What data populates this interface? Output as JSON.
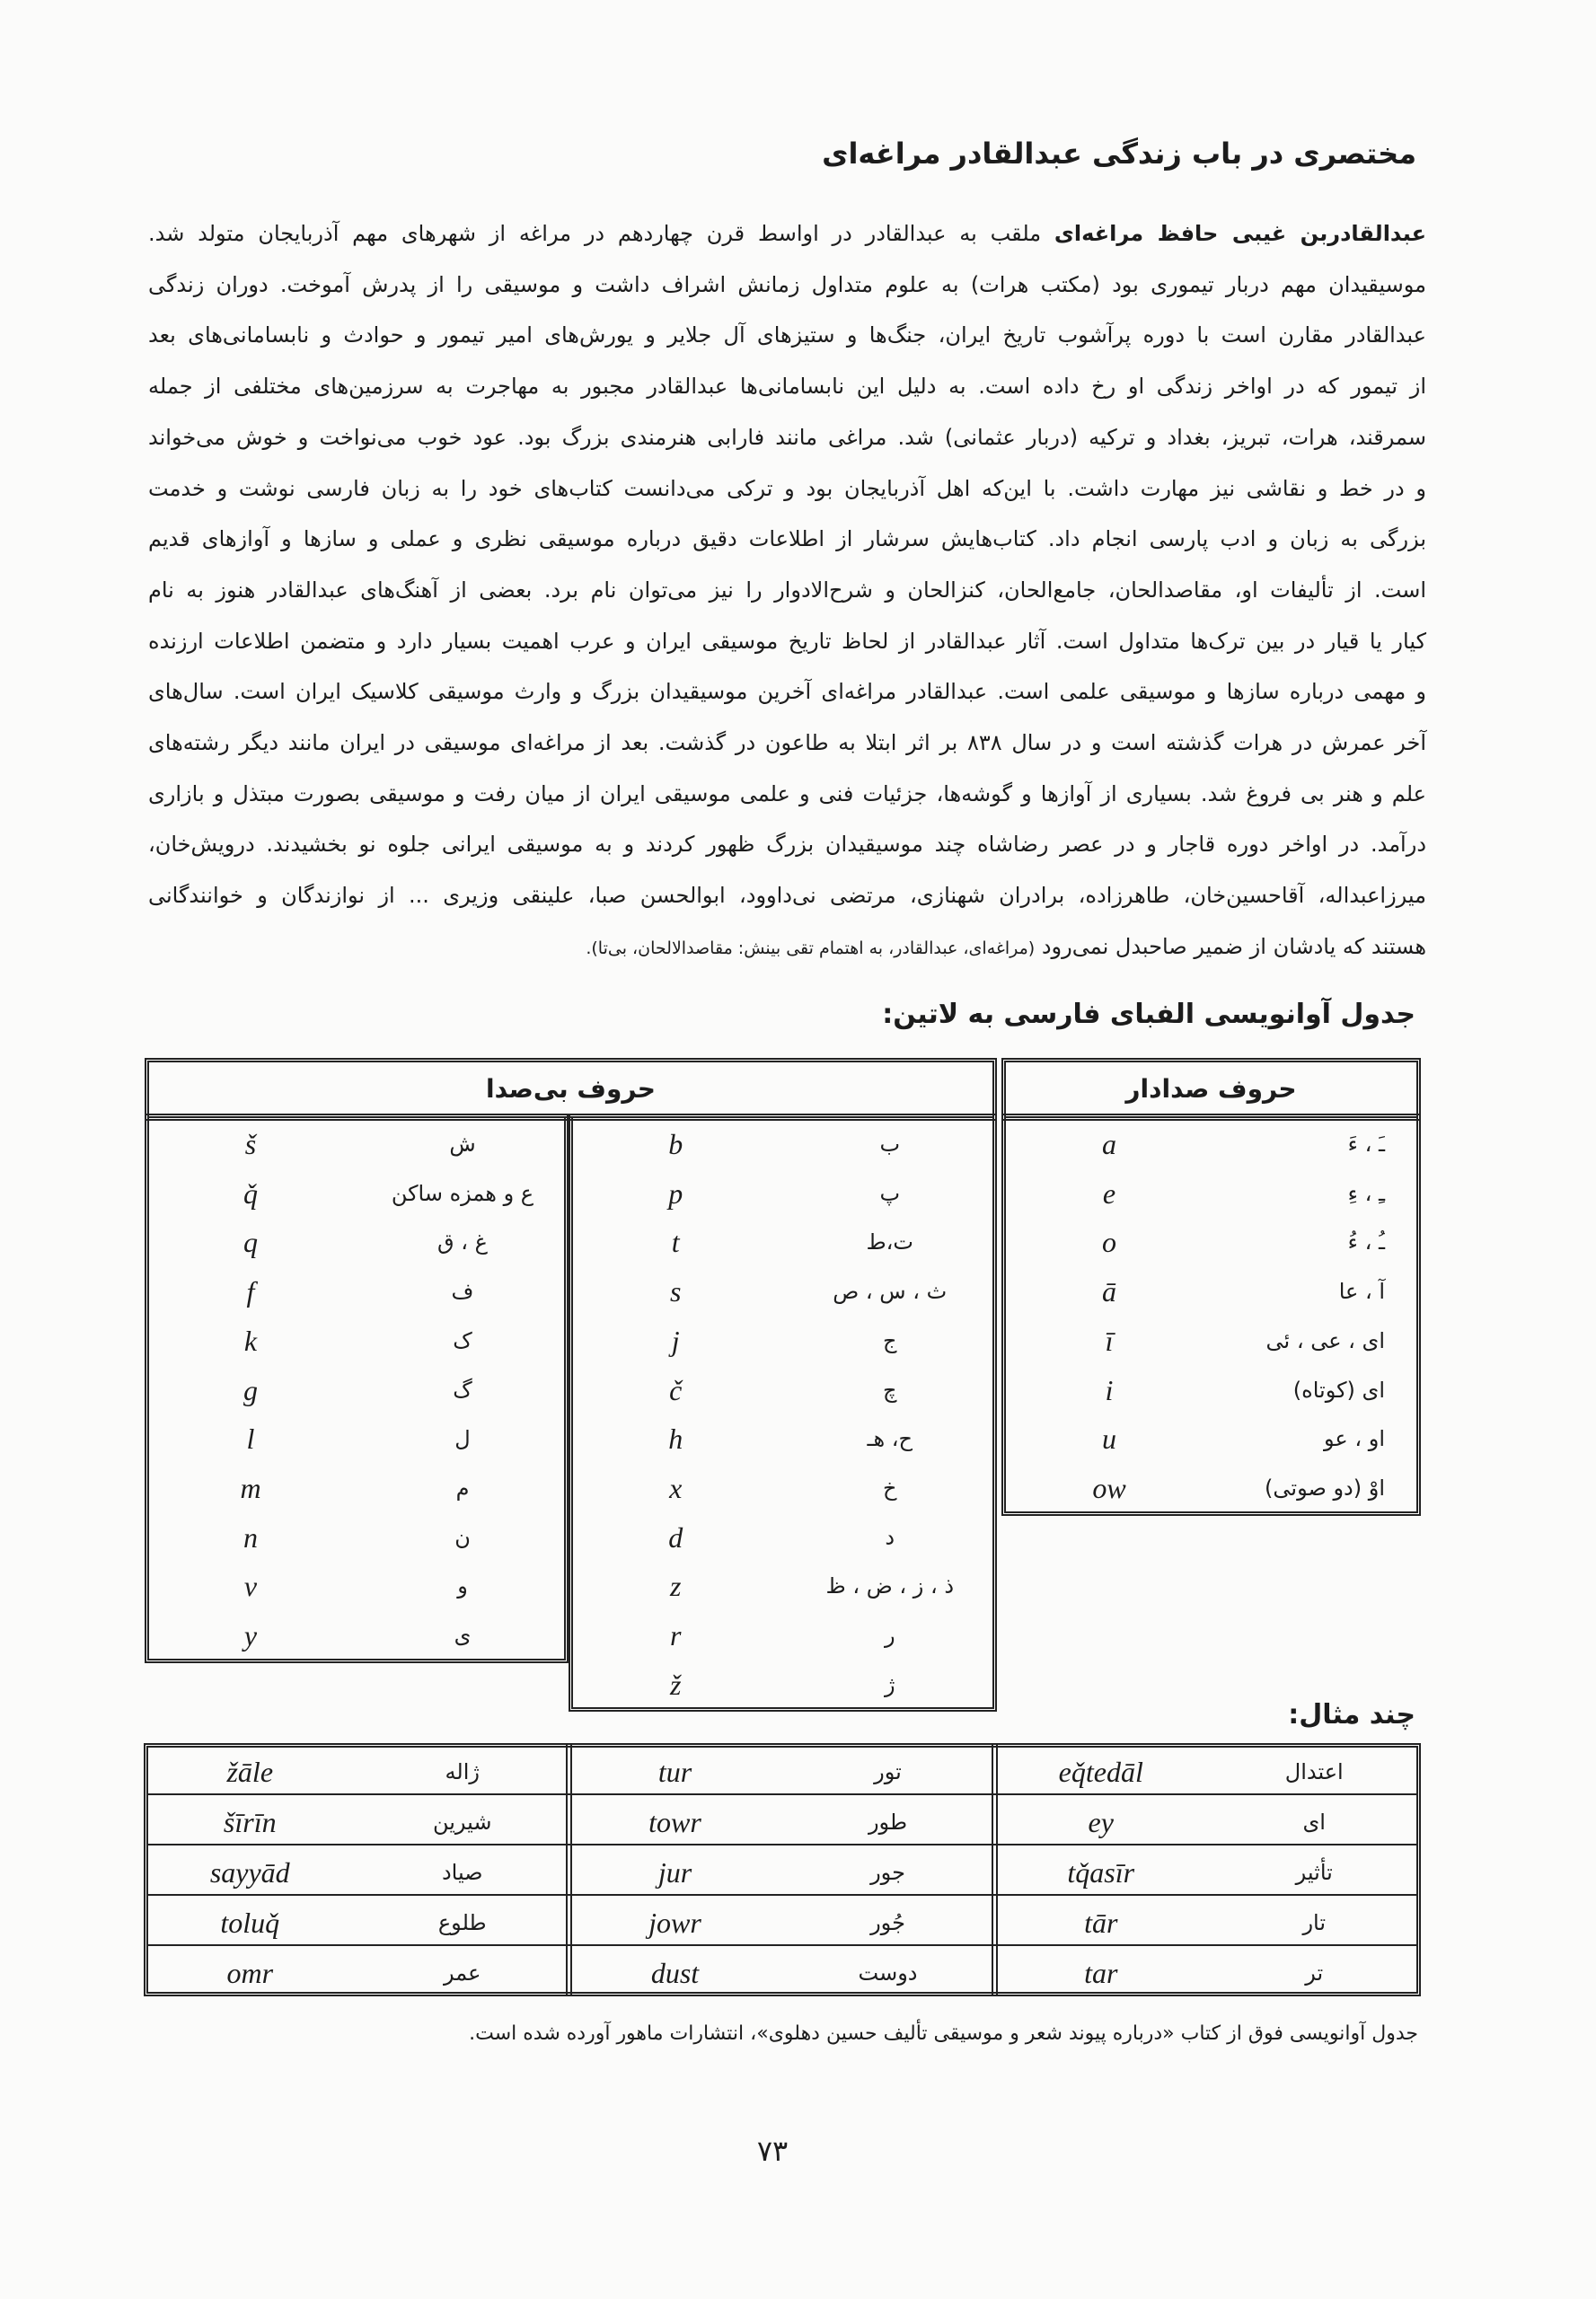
{
  "title": "مختصری در باب زندگی عبدالقادر مراغه‌ای",
  "paragraph": {
    "lead": "عبدالقادربن غیبی حافظ مراغه‌ای",
    "lines": [
      "ملقب به عبدالقادر در اواسط قرن چهاردهم در مراغه از شهرهای مهم آذربایجان متولد شد.",
      "موسیقیدان مهم دربار تیموری بود (مکتب هرات) به علوم متداول زمانش اشراف داشت و موسیقی را از پدرش آموخت. دوران زندگی",
      "عبدالقادر مقارن است با دوره پرآشوب تاریخ ایران، جنگ‌ها و ستیزهای آل جلایر و یورش‌های امیر تیمور و حوادث و نابسامانی‌های بعد",
      "از تیمور که در اواخر زندگی او رخ داده است. به دلیل این نابسامانی‌ها عبدالقادر مجبور به مهاجرت به سرزمین‌های مختلفی از جمله",
      "سمرقند، هرات، تبریز، بغداد و ترکیه (دربار عثمانی) شد. مراغی مانند فارابی هنرمندی بزرگ بود. عود خوب می‌نواخت و خوش می‌خواند",
      "و در خط و نقاشی نیز مهارت داشت. با این‌که اهل آذربایجان بود و ترکی می‌دانست کتاب‌های خود را به زبان فارسی نوشت و خدمت",
      "بزرگی به زبان و ادب پارسی انجام داد. کتاب‌هایش سرشار از اطلاعات دقیق درباره موسیقی نظری و عملی و سازها و آوازهای قدیم",
      "است. از تألیفات او، مقاصدالحان، جامع‌الحان، کنزالحان و شرح‌الادوار را نیز می‌توان نام برد. بعضی از آهنگ‌های عبدالقادر هنوز به نام",
      "کیار یا قیار در بین ترک‌ها متداول است. آثار عبدالقادر از لحاظ تاریخ موسیقی ایران و عرب اهمیت بسیار دارد و متضمن اطلاعات ارزنده",
      "و مهمی درباره سازها و موسیقی علمی است. عبدالقادر مراغه‌ای آخرین موسیقیدان بزرگ و وارث موسیقی کلاسیک ایران است. سال‌های",
      "آخر عمرش در هرات گذشته است و در سال ۸۳۸ بر اثر ابتلا به طاعون در گذشت. بعد از مراغه‌ای موسیقی در ایران مانند دیگر رشته‌های",
      "علم و هنر بی فروغ شد. بسیاری از آوازها و گوشه‌ها، جزئیات فنی و علمی موسیقی ایران از میان رفت و موسیقی بصورت مبتذل و بازاری",
      "درآمد. در اواخر دوره قاجار و در عصر رضاشاه چند موسیقیدان بزرگ ظهور کردند و به موسیقی ایرانی جلوه نو بخشیدند. درویش‌خان،",
      "میرزاعبداله، آقاحسین‌خان، طاهرزاده، برادران شهنازی، مرتضی نی‌داوود، ابوالحسن صبا، علینقی وزیری ... از نوازندگان و خوانندگانی",
      "هستند که یادشان از ضمیر صاحبدل نمی‌رود"
    ],
    "citation": "(مراغه‌ای، عبدالقادر، به اهتمام تقی بینش: مقاصدالالحان، بی‌تا)."
  },
  "transliteration_heading": "جدول آوانویسی الفبای فارسی به لاتین:",
  "vowels": {
    "header": "حروف صدادار",
    "rows": [
      [
        "ـَ ، ءَ",
        "a"
      ],
      [
        "ـِ ، ءِ",
        "e"
      ],
      [
        "ـُ ، ءُ",
        "o"
      ],
      [
        "آ ، عا",
        "ā"
      ],
      [
        "ای ، عی ، ئی",
        "ī"
      ],
      [
        "ای (کوتاه)",
        "i"
      ],
      [
        "او ، عو",
        "u"
      ],
      [
        "اوْ (دو صوتی)",
        "ow"
      ]
    ]
  },
  "consonants": {
    "header": "حروف بی‌صدا",
    "columns": [
      [
        [
          "ب",
          "b"
        ],
        [
          "پ",
          "p"
        ],
        [
          "ت،ط",
          "t"
        ],
        [
          "ث ، س ، ص",
          "s"
        ],
        [
          "ج",
          "j"
        ],
        [
          "چ",
          "č"
        ],
        [
          "ح، هـ",
          "h"
        ],
        [
          "خ",
          "x"
        ],
        [
          "د",
          "d"
        ],
        [
          "ذ ، ز ، ض ، ظ",
          "z"
        ],
        [
          "ر",
          "r"
        ],
        [
          "ژ",
          "ž"
        ]
      ],
      [
        [
          "ش",
          "š"
        ],
        [
          "ع و همزه ساکن",
          "q̌"
        ],
        [
          "غ ، ق",
          "q"
        ],
        [
          "ف",
          "f"
        ],
        [
          "ک",
          "k"
        ],
        [
          "گ",
          "g"
        ],
        [
          "ل",
          "l"
        ],
        [
          "م",
          "m"
        ],
        [
          "ن",
          "n"
        ],
        [
          "و",
          "v"
        ],
        [
          "ی",
          "y"
        ]
      ]
    ]
  },
  "examples_heading": "چند مثال:",
  "examples": {
    "groups": [
      [
        [
          "اعتدال",
          "eq̌tedāl"
        ],
        [
          "ای",
          "ey"
        ],
        [
          "تأثیر",
          "tq̌asīr"
        ],
        [
          "تار",
          "tār"
        ],
        [
          "تر",
          "tar"
        ]
      ],
      [
        [
          "تور",
          "tur"
        ],
        [
          "طور",
          "towr"
        ],
        [
          "جور",
          "jur"
        ],
        [
          "جُور",
          "jowr"
        ],
        [
          "دوست",
          "dust"
        ]
      ],
      [
        [
          "ژاله",
          "žāle"
        ],
        [
          "شیرین",
          "šīrīn"
        ],
        [
          "صیاد",
          "sayyād"
        ],
        [
          "طلوع",
          "toluq̌"
        ],
        [
          "عمر",
          "omr"
        ]
      ]
    ]
  },
  "footnote": "جدول آوانویسی فوق از کتاب «درباره پیوند شعر و موسیقی تألیف حسین دهلوی»، انتشارات ماهور آورده شده است.",
  "page_number": "۷۳"
}
